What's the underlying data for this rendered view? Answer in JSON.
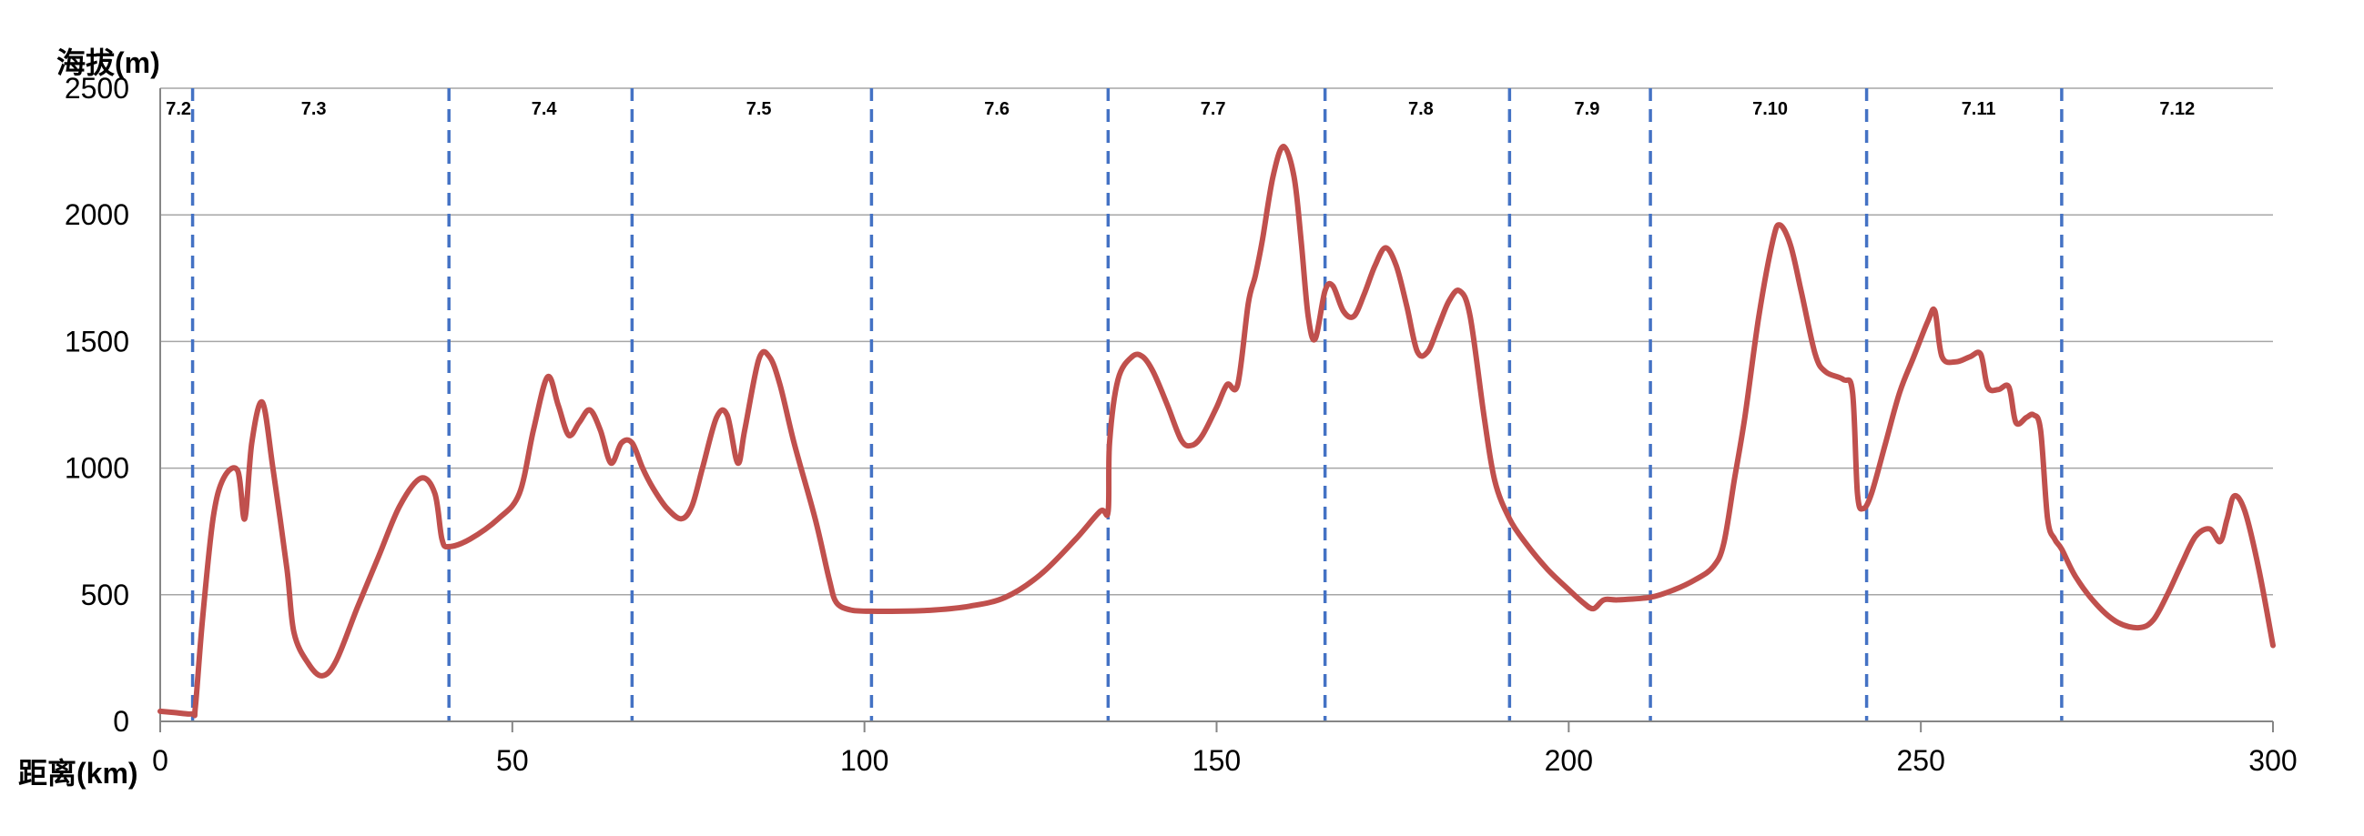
{
  "chart_data": {
    "type": "line",
    "title": "",
    "ylabel": "海拔(m)",
    "xlabel": "距离(km)",
    "xlim": [
      0,
      300
    ],
    "ylim": [
      0,
      2500
    ],
    "x_ticks": [
      0,
      50,
      100,
      150,
      200,
      250,
      300
    ],
    "y_ticks": [
      0,
      500,
      1000,
      1500,
      2000,
      2500
    ],
    "grid": "horizontal",
    "legend": "none",
    "line_color": "#c0504d",
    "divider_color": "#4472c4",
    "day_dividers": [
      4.6,
      41,
      67,
      101,
      134.6,
      165.4,
      191.6,
      211.6,
      242.3,
      270
    ],
    "day_labels": [
      {
        "label": "7.2",
        "x": 2.6
      },
      {
        "label": "7.3",
        "x": 21.8
      },
      {
        "label": "7.4",
        "x": 54.5
      },
      {
        "label": "7.5",
        "x": 85
      },
      {
        "label": "7.6",
        "x": 118.8
      },
      {
        "label": "7.7",
        "x": 149.5
      },
      {
        "label": "7.8",
        "x": 179
      },
      {
        "label": "7.9",
        "x": 202.6
      },
      {
        "label": "7.10",
        "x": 228.6
      },
      {
        "label": "7.11",
        "x": 258.2
      },
      {
        "label": "7.12",
        "x": 286.4
      }
    ],
    "series": [
      {
        "points": [
          [
            0,
            40
          ],
          [
            2,
            35
          ],
          [
            4.6,
            30
          ],
          [
            5,
            60
          ],
          [
            6,
            400
          ],
          [
            7.5,
            800
          ],
          [
            9,
            960
          ],
          [
            11,
            990
          ],
          [
            12,
            800
          ],
          [
            13,
            1100
          ],
          [
            14.5,
            1260
          ],
          [
            16,
            1000
          ],
          [
            18,
            600
          ],
          [
            19,
            350
          ],
          [
            21,
            230
          ],
          [
            23,
            180
          ],
          [
            25,
            240
          ],
          [
            28,
            450
          ],
          [
            31,
            650
          ],
          [
            34,
            850
          ],
          [
            37,
            960
          ],
          [
            39,
            900
          ],
          [
            40,
            720
          ],
          [
            41,
            690
          ],
          [
            44,
            720
          ],
          [
            48,
            800
          ],
          [
            51,
            900
          ],
          [
            53,
            1150
          ],
          [
            55,
            1360
          ],
          [
            56.5,
            1250
          ],
          [
            58,
            1130
          ],
          [
            59.5,
            1180
          ],
          [
            61,
            1230
          ],
          [
            62.5,
            1150
          ],
          [
            64,
            1020
          ],
          [
            65.5,
            1100
          ],
          [
            67,
            1100
          ],
          [
            68.5,
            1000
          ],
          [
            70,
            920
          ],
          [
            72,
            840
          ],
          [
            74,
            800
          ],
          [
            75.5,
            850
          ],
          [
            77,
            1000
          ],
          [
            79,
            1200
          ],
          [
            80.5,
            1210
          ],
          [
            82,
            1020
          ],
          [
            83,
            1150
          ],
          [
            85,
            1430
          ],
          [
            86.5,
            1440
          ],
          [
            88,
            1330
          ],
          [
            90,
            1100
          ],
          [
            93,
            800
          ],
          [
            95,
            560
          ],
          [
            96,
            470
          ],
          [
            98,
            440
          ],
          [
            101,
            435
          ],
          [
            105,
            435
          ],
          [
            110,
            440
          ],
          [
            115,
            455
          ],
          [
            120,
            490
          ],
          [
            125,
            580
          ],
          [
            130,
            720
          ],
          [
            133.5,
            830
          ],
          [
            134.6,
            830
          ],
          [
            134.8,
            1100
          ],
          [
            136,
            1350
          ],
          [
            138,
            1440
          ],
          [
            139.5,
            1440
          ],
          [
            141,
            1380
          ],
          [
            143,
            1250
          ],
          [
            145,
            1110
          ],
          [
            146.5,
            1090
          ],
          [
            148,
            1130
          ],
          [
            150,
            1240
          ],
          [
            151.5,
            1330
          ],
          [
            153,
            1330
          ],
          [
            154.5,
            1650
          ],
          [
            155.5,
            1760
          ],
          [
            156.5,
            1900
          ],
          [
            158,
            2150
          ],
          [
            159.5,
            2270
          ],
          [
            161,
            2150
          ],
          [
            162,
            1900
          ],
          [
            163,
            1600
          ],
          [
            164,
            1510
          ],
          [
            165.4,
            1700
          ],
          [
            166.5,
            1720
          ],
          [
            168,
            1620
          ],
          [
            169.5,
            1600
          ],
          [
            171,
            1690
          ],
          [
            172.5,
            1800
          ],
          [
            174,
            1870
          ],
          [
            175.5,
            1800
          ],
          [
            177,
            1640
          ],
          [
            178.5,
            1460
          ],
          [
            180,
            1460
          ],
          [
            181.5,
            1560
          ],
          [
            183,
            1660
          ],
          [
            184.5,
            1700
          ],
          [
            186,
            1600
          ],
          [
            188,
            1200
          ],
          [
            189.5,
            950
          ],
          [
            191.6,
            800
          ],
          [
            194,
            700
          ],
          [
            197,
            600
          ],
          [
            200,
            520
          ],
          [
            202,
            470
          ],
          [
            203.5,
            445
          ],
          [
            205,
            480
          ],
          [
            207,
            480
          ],
          [
            211.6,
            490
          ],
          [
            215,
            520
          ],
          [
            218,
            560
          ],
          [
            220.5,
            610
          ],
          [
            222,
            700
          ],
          [
            223.5,
            950
          ],
          [
            225,
            1200
          ],
          [
            227,
            1600
          ],
          [
            229,
            1900
          ],
          [
            230,
            1960
          ],
          [
            231.5,
            1880
          ],
          [
            233,
            1700
          ],
          [
            235,
            1450
          ],
          [
            236.5,
            1380
          ],
          [
            239,
            1350
          ],
          [
            240.3,
            1300
          ],
          [
            241,
            900
          ],
          [
            241.8,
            840
          ],
          [
            243,
            900
          ],
          [
            245,
            1100
          ],
          [
            247,
            1300
          ],
          [
            249,
            1440
          ],
          [
            251,
            1580
          ],
          [
            252,
            1620
          ],
          [
            253,
            1440
          ],
          [
            255,
            1420
          ],
          [
            257,
            1440
          ],
          [
            258.5,
            1450
          ],
          [
            259.5,
            1320
          ],
          [
            261,
            1310
          ],
          [
            262.5,
            1320
          ],
          [
            263.5,
            1180
          ],
          [
            265,
            1200
          ],
          [
            266,
            1210
          ],
          [
            267,
            1150
          ],
          [
            268,
            800
          ],
          [
            269,
            720
          ],
          [
            270,
            680
          ],
          [
            272,
            570
          ],
          [
            275,
            460
          ],
          [
            278,
            390
          ],
          [
            281,
            370
          ],
          [
            283,
            400
          ],
          [
            285,
            500
          ],
          [
            287,
            620
          ],
          [
            289,
            730
          ],
          [
            291,
            760
          ],
          [
            292.5,
            710
          ],
          [
            293.5,
            800
          ],
          [
            294.5,
            890
          ],
          [
            296,
            830
          ],
          [
            298,
            600
          ],
          [
            300,
            300
          ]
        ]
      }
    ]
  }
}
